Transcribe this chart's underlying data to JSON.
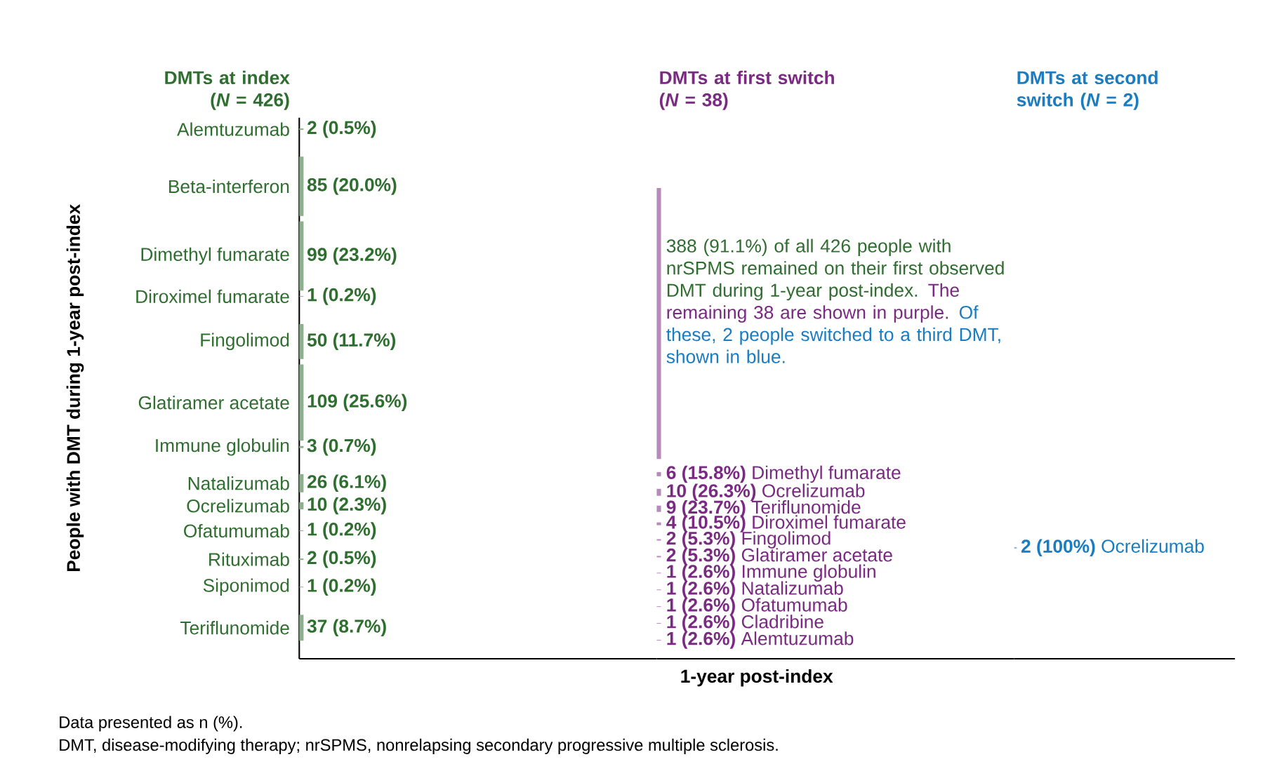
{
  "chart_data": [
    {
      "type": "other",
      "title": "DMTs at index (*N* = 426)",
      "ylabel": "People with DMT during 1-year post-index",
      "color": "#2e6e2e",
      "categories": [
        "Alemtuzumab",
        "Beta-interferon",
        "Dimethyl fumarate",
        "Diroximel fumarate",
        "Fingolimod",
        "Glatiramer acetate",
        "Immune globulin",
        "Natalizumab",
        "Ocrelizumab",
        "Ofatumumab",
        "Rituximab",
        "Siponimod",
        "Teriflunomide"
      ],
      "values": [
        2,
        85,
        99,
        1,
        50,
        109,
        3,
        26,
        10,
        1,
        2,
        1,
        37
      ],
      "value_labels": [
        "2 (0.5%)",
        "85 (20.0%)",
        "99 (23.2%)",
        "1 (0.2%)",
        "50 (11.7%)",
        "109 (25.6%)",
        "3 (0.7%)",
        "26 (6.1%)",
        "10 (2.3%)",
        "1 (0.2%)",
        "2 (0.5%)",
        "1 (0.2%)",
        "37 (8.7%)"
      ],
      "annotations": [
        "Data presented as n (%).",
        "DMT, disease-modifying therapy; nrSPMS, nonrelapsing secondary progressive multiple sclerosis."
      ]
    },
    {
      "type": "other",
      "title": "DMTs at first switch (*N* = 38)",
      "xlabel": "1-year post-index",
      "color": "#7a2a82",
      "categories": [
        null,
        "Dimethyl fumarate",
        "Ocrelizumab",
        "Teriflunomide",
        "Diroximel fumarate",
        "Fingolimod",
        "Glatiramer acetate",
        "Immune globulin",
        "Natalizumab",
        "Ofatumumab",
        "Cladribine",
        "Alemtuzumab"
      ],
      "values": [
        388,
        6,
        10,
        9,
        4,
        2,
        2,
        1,
        1,
        1,
        1,
        1
      ],
      "value_labels": [
        "388 (91.1%)",
        "6 (15.8%)",
        "10 (26.3%)",
        "9 (23.7%)",
        "4 (10.5%)",
        "2 (5.3%)",
        "2 (5.3%)",
        "1 (2.6%)",
        "1 (2.6%)",
        "1 (2.6%)",
        "1 (2.6%)",
        "1 (2.6%)"
      ],
      "annotations": [
        "of all 426 people with nrSPMS remained on their first observed DMT during 1-year post-index.",
        "The remaining 38 are shown in purple.",
        "Of these, 2 people switched to a third DMT, shown in blue."
      ]
    },
    {
      "type": "other",
      "title": "DMTs at second switch (*N* = 2)",
      "color": "#1a7cc1",
      "categories": [
        "Ocrelizumab"
      ],
      "values": [
        2
      ],
      "value_labels": [
        "2 (100%)"
      ]
    }
  ]
}
